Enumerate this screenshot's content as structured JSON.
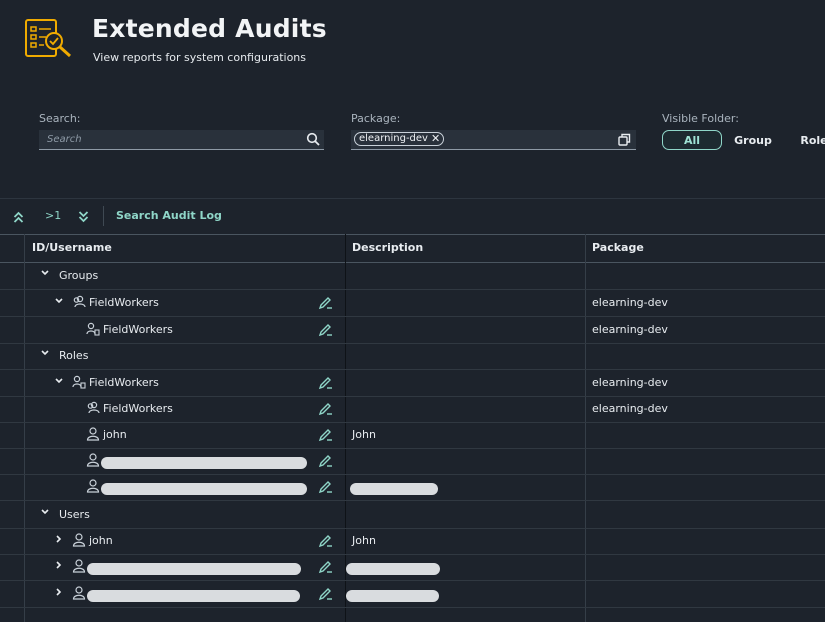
{
  "header": {
    "title": "Extended Audits",
    "subtitle": "View reports for system configurations"
  },
  "filters": {
    "search_label": "Search:",
    "search_placeholder": "Search",
    "package_label": "Package:",
    "package_token": "elearning-dev",
    "visible_folder_label": "Visible Folder:",
    "segments": [
      "All",
      "Group",
      "Role"
    ],
    "selected_segment": "All"
  },
  "toolbar": {
    "expand_level": ">1",
    "search_audit_log": "Search Audit Log"
  },
  "table": {
    "columns": [
      "ID/Username",
      "Description",
      "Package"
    ],
    "rows": [
      {
        "id": "Groups",
        "description": "",
        "package": ""
      },
      {
        "id": "FieldWorkers",
        "description": "",
        "package": "elearning-dev"
      },
      {
        "id": "FieldWorkers",
        "description": "",
        "package": "elearning-dev"
      },
      {
        "id": "Roles",
        "description": "",
        "package": ""
      },
      {
        "id": "FieldWorkers",
        "description": "",
        "package": "elearning-dev"
      },
      {
        "id": "FieldWorkers",
        "description": "",
        "package": "elearning-dev"
      },
      {
        "id": "john",
        "description": "John",
        "package": ""
      },
      {
        "id": "",
        "description": "",
        "package": ""
      },
      {
        "id": "",
        "description": "",
        "package": ""
      },
      {
        "id": "Users",
        "description": "",
        "package": ""
      },
      {
        "id": "john",
        "description": "John",
        "package": ""
      },
      {
        "id": "",
        "description": "",
        "package": ""
      },
      {
        "id": "",
        "description": "",
        "package": ""
      }
    ]
  },
  "colors": {
    "accent": "#8fd6c8",
    "background": "#1d232c",
    "brand_icon": "#f0ab00"
  }
}
